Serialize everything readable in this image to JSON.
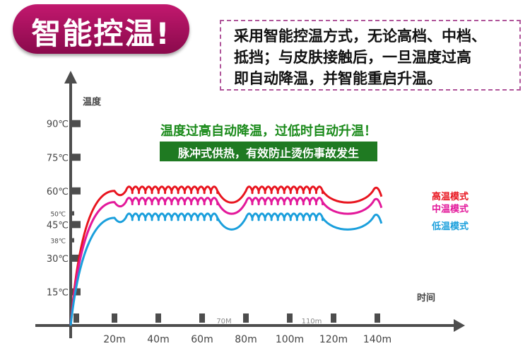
{
  "title": "智能控温!",
  "description": {
    "lines": [
      "采用智能控温方式，无论高档、中档、",
      "抵挡；与皮肤接触后，一旦温度过高",
      "即自动降温，并智能重启升温。"
    ]
  },
  "chart_subtitle": "温度过高自动降温，过低时自动升温！",
  "chart_note": "脉冲式供热，有效防止烫伤事故发生",
  "colors": {
    "title_bg": "#b0126a",
    "note_bg": "#1f7a22",
    "high": "#e8141e",
    "mid": "#e3189a",
    "low": "#1a9fdc",
    "axis": "#4d4d4d"
  },
  "chart_data": {
    "type": "line",
    "ylabel": "温度",
    "xlabel": "时间",
    "y_ticks": [
      {
        "value": 15,
        "label": "15℃"
      },
      {
        "value": 30,
        "label": "30℃"
      },
      {
        "value": 38,
        "label": "38℃",
        "minor": true
      },
      {
        "value": 45,
        "label": "45℃"
      },
      {
        "value": 50,
        "label": "50℃",
        "minor": true
      },
      {
        "value": 60,
        "label": "60℃"
      },
      {
        "value": 75,
        "label": "75℃"
      },
      {
        "value": 90,
        "label": "90℃"
      }
    ],
    "x_ticks": [
      {
        "value": 20,
        "label": "20m"
      },
      {
        "value": 40,
        "label": "40m"
      },
      {
        "value": 60,
        "label": "60m"
      },
      {
        "value": 70,
        "label": "70M",
        "minor": true
      },
      {
        "value": 80,
        "label": "80m"
      },
      {
        "value": 100,
        "label": "100m"
      },
      {
        "value": 110,
        "label": "110m",
        "minor": true
      },
      {
        "value": 120,
        "label": "120m"
      },
      {
        "value": 140,
        "label": "140m"
      }
    ],
    "ylim": [
      0,
      100
    ],
    "xlim": [
      0,
      150
    ],
    "grid": false,
    "series": [
      {
        "name": "高温模式",
        "color": "#e8141e",
        "level": 60
      },
      {
        "name": "中温模式",
        "color": "#e3189a",
        "level": 55
      },
      {
        "name": "低温模式",
        "color": "#1a9fdc",
        "level": 48
      }
    ]
  }
}
